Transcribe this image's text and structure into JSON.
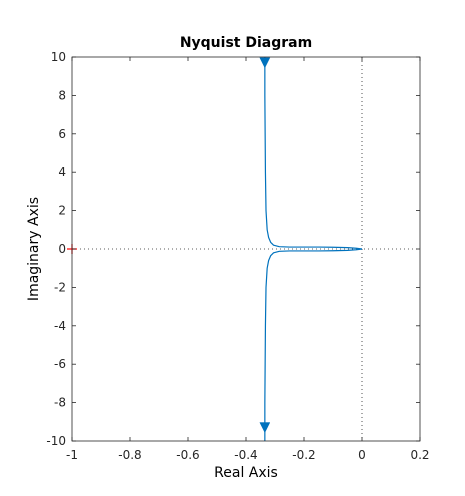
{
  "chart_data": {
    "type": "line",
    "title": "Nyquist Diagram",
    "xlabel": "Real Axis",
    "ylabel": "Imaginary Axis",
    "xlim": [
      -1,
      0.2
    ],
    "ylim": [
      -10,
      10
    ],
    "xticks": [
      -1,
      -0.8,
      -0.6,
      -0.4,
      -0.2,
      0,
      0.2
    ],
    "xtick_labels": [
      "-1",
      "-0.8",
      "-0.6",
      "-0.4",
      "-0.2",
      "0",
      "0.2"
    ],
    "yticks": [
      -10,
      -8,
      -6,
      -4,
      -2,
      0,
      2,
      4,
      6,
      8,
      10
    ],
    "ytick_labels": [
      "-10",
      "-8",
      "-6",
      "-4",
      "-2",
      "0",
      "2",
      "4",
      "6",
      "8",
      "10"
    ],
    "grid": false,
    "zero_lines": "dotted",
    "critical_point": {
      "x": -1,
      "y": 0,
      "marker": "+",
      "color": "#ff0000"
    },
    "colors": {
      "curve": "#0072bd",
      "axis": "#262626",
      "zero_line": "#262626",
      "critical": "#ff0000"
    },
    "series": [
      {
        "branch": "positive-frequency",
        "x": [
          -0.335,
          -0.335,
          -0.334,
          -0.333,
          -0.331,
          -0.327,
          -0.322,
          -0.315,
          -0.305,
          -0.285,
          -0.25,
          -0.2,
          -0.15,
          -0.1,
          -0.05,
          -0.02,
          0
        ],
        "y": [
          10,
          8,
          6,
          4,
          2,
          1,
          0.6,
          0.35,
          0.2,
          0.12,
          0.1,
          0.1,
          0.1,
          0.09,
          0.07,
          0.04,
          0
        ]
      },
      {
        "branch": "negative-frequency",
        "x": [
          -0.335,
          -0.335,
          -0.334,
          -0.333,
          -0.331,
          -0.327,
          -0.322,
          -0.315,
          -0.305,
          -0.285,
          -0.25,
          -0.2,
          -0.15,
          -0.1,
          -0.05,
          -0.02,
          0
        ],
        "y": [
          -10,
          -8,
          -6,
          -4,
          -2,
          -1,
          -0.6,
          -0.35,
          -0.2,
          -0.12,
          -0.1,
          -0.1,
          -0.1,
          -0.09,
          -0.07,
          -0.04,
          0
        ]
      }
    ],
    "arrows": [
      {
        "x": -0.335,
        "y": 9.7,
        "direction": "down"
      },
      {
        "x": -0.335,
        "y": -9.3,
        "direction": "down"
      }
    ]
  }
}
